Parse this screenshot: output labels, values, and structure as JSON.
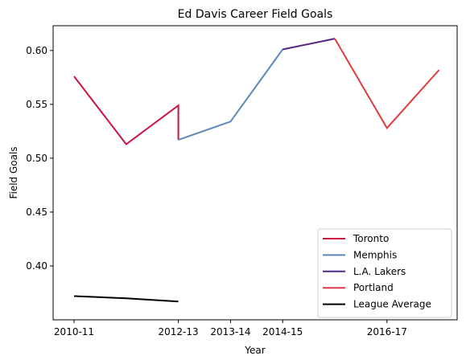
{
  "chart_data": {
    "type": "line",
    "title": "Ed Davis  Career Field Goals",
    "xlabel": "Year",
    "ylabel": "Field Goals",
    "x_tick_labels": [
      "2010-11",
      "2012-13",
      "2013-14",
      "2014-15",
      "2016-17"
    ],
    "y_ticks": [
      "0.40",
      "0.45",
      "0.50",
      "0.55",
      "0.60"
    ],
    "ylim": [
      0.35,
      0.623
    ],
    "legend_position": "lower-right",
    "grid": false,
    "series": [
      {
        "name": "Toronto",
        "color": "#ce1141",
        "points": [
          {
            "x": "2010-11",
            "y": 0.576
          },
          {
            "x": "2011-12",
            "y": 0.513
          },
          {
            "x": "2012-13",
            "y": 0.549
          },
          {
            "x": "2012-13",
            "y": 0.517
          }
        ]
      },
      {
        "name": "Memphis",
        "color": "#5d88b9",
        "points": [
          {
            "x": "2012-13",
            "y": 0.517
          },
          {
            "x": "2013-14",
            "y": 0.534
          },
          {
            "x": "2014-15",
            "y": 0.601
          }
        ]
      },
      {
        "name": "L.A. Lakers",
        "color": "#552583",
        "points": [
          {
            "x": "2014-15",
            "y": 0.601
          },
          {
            "x": "2015-16",
            "y": 0.611
          }
        ]
      },
      {
        "name": "Portland",
        "color": "#e03a3e",
        "points": [
          {
            "x": "2015-16",
            "y": 0.611
          },
          {
            "x": "2016-17",
            "y": 0.528
          },
          {
            "x": "2017-18",
            "y": 0.582
          }
        ]
      },
      {
        "name": "League Average",
        "color": "#000000",
        "points": [
          {
            "x": "2010-11",
            "y": 0.372
          },
          {
            "x": "2011-12",
            "y": 0.37
          },
          {
            "x": "2012-13",
            "y": 0.367
          }
        ]
      }
    ]
  }
}
